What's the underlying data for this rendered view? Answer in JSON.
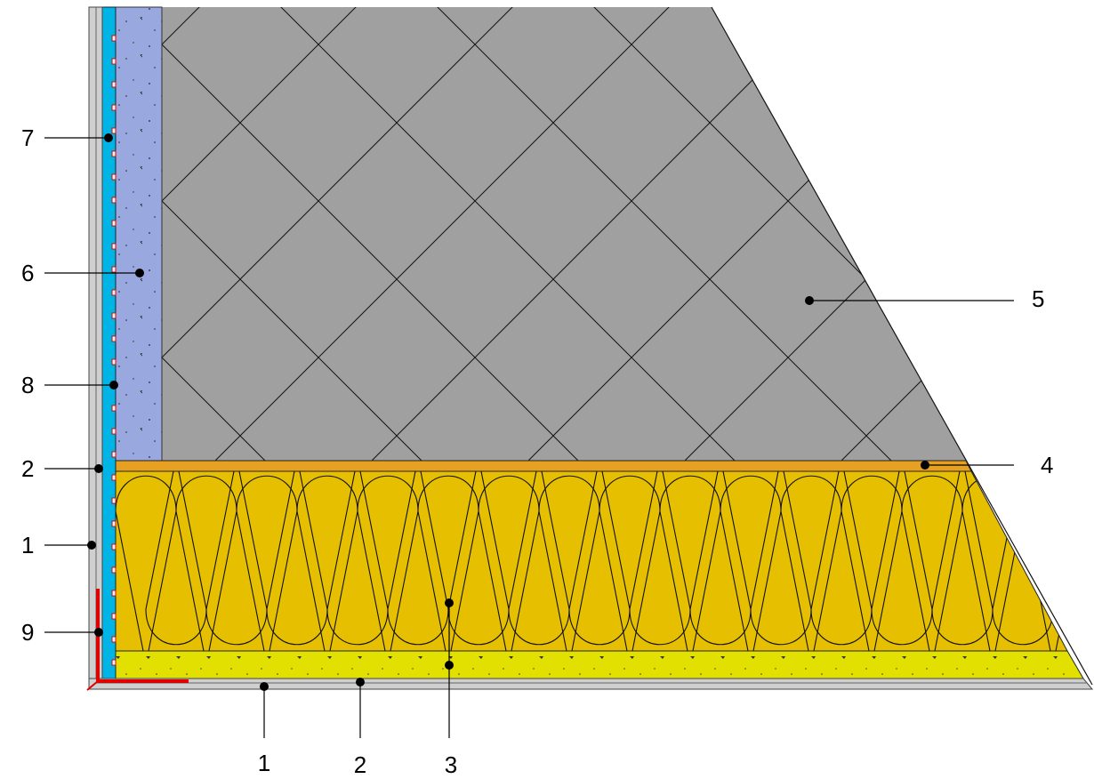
{
  "labels": [
    "7",
    "6",
    "8",
    "2",
    "1",
    "9",
    "5",
    "4",
    "1",
    "2",
    "3"
  ]
}
